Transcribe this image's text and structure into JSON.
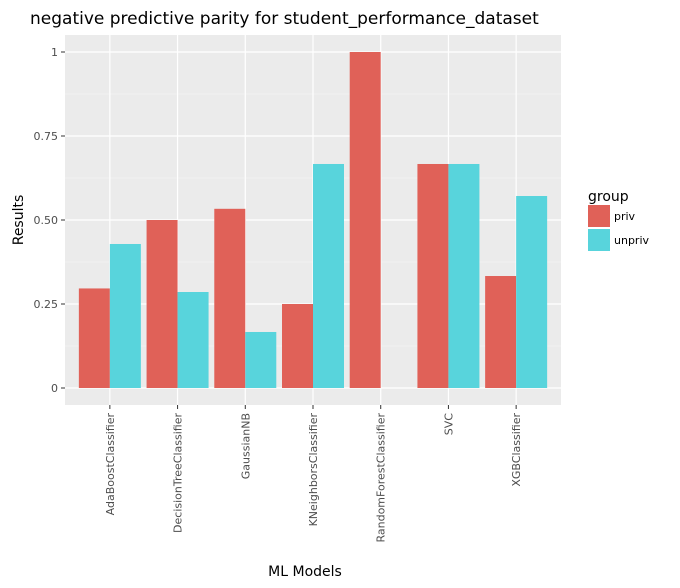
{
  "chart_data": {
    "type": "bar",
    "title": "negative predictive parity for student_performance_dataset",
    "xlabel": "ML Models",
    "ylabel": "Results",
    "categories": [
      "AdaBoostClassifier",
      "DecisionTreeClassifier",
      "GaussianNB",
      "KNeighborsClassifier",
      "RandomForestClassifier",
      "SVC",
      "XGBClassifier"
    ],
    "series": [
      {
        "name": "priv",
        "color": "#e06158",
        "values": [
          0.2963,
          0.5,
          0.5333,
          0.25,
          1.0,
          0.6667,
          0.3333
        ]
      },
      {
        "name": "unpriv",
        "color": "#58d4dc",
        "values": [
          0.4286,
          0.2857,
          0.1667,
          0.6667,
          0.0,
          0.6667,
          0.5714
        ]
      }
    ],
    "ylim": [
      0,
      1
    ],
    "yticks": [
      0,
      0.25,
      0.5,
      0.75,
      1
    ],
    "ytick_labels": [
      "0",
      "0.25",
      "0.50",
      "0.75",
      "1"
    ],
    "grid": true,
    "legend": {
      "title": "group",
      "position": "right"
    },
    "background_color": "#ebebeb"
  }
}
